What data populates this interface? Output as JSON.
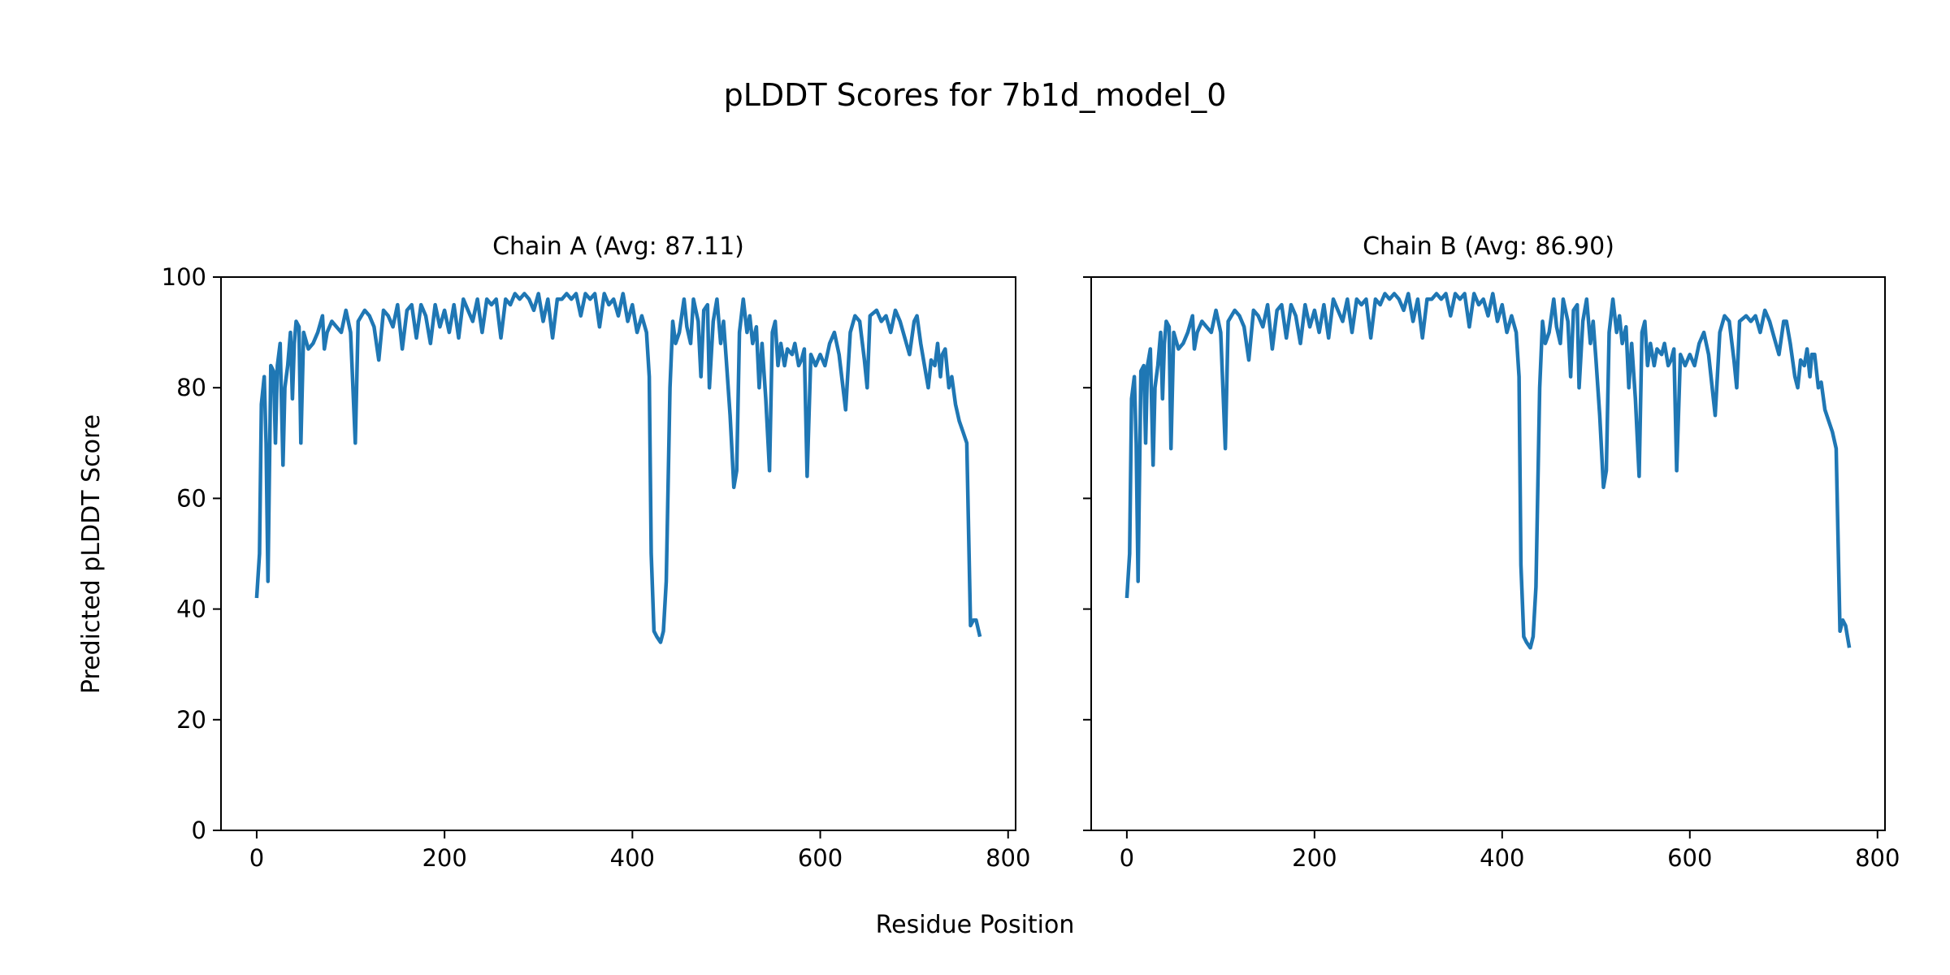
{
  "chart_data": {
    "type": "line",
    "title": "pLDDT Scores for 7b1d_model_0",
    "xlabel": "Residue Position",
    "ylabel": "Predicted pLDDT Score",
    "line_color": "#1f77b4",
    "xlim": [
      -38,
      808
    ],
    "ylim": [
      0,
      100
    ],
    "xticks": [
      "0",
      "200",
      "400",
      "600",
      "800"
    ],
    "yticks": [
      "0",
      "20",
      "40",
      "60",
      "80",
      "100"
    ],
    "grid": false,
    "panels": [
      {
        "title": "Chain A (Avg: 87.11)",
        "x": [
          0,
          3,
          5,
          8,
          10,
          12,
          15,
          18,
          20,
          22,
          25,
          28,
          30,
          33,
          36,
          38,
          40,
          42,
          45,
          47,
          50,
          55,
          60,
          65,
          70,
          72,
          75,
          80,
          85,
          90,
          95,
          100,
          105,
          108,
          115,
          120,
          125,
          130,
          135,
          140,
          145,
          150,
          155,
          160,
          165,
          170,
          175,
          180,
          185,
          190,
          195,
          200,
          205,
          210,
          215,
          220,
          225,
          230,
          235,
          240,
          245,
          250,
          255,
          260,
          265,
          270,
          275,
          280,
          285,
          290,
          295,
          300,
          305,
          310,
          315,
          320,
          325,
          330,
          335,
          340,
          345,
          350,
          355,
          360,
          365,
          370,
          375,
          380,
          385,
          390,
          395,
          400,
          405,
          410,
          415,
          418,
          420,
          423,
          426,
          430,
          433,
          436,
          440,
          443,
          446,
          450,
          455,
          458,
          462,
          465,
          470,
          473,
          476,
          480,
          482,
          486,
          490,
          494,
          497,
          500,
          504,
          508,
          511,
          514,
          518,
          522,
          525,
          528,
          532,
          535,
          538,
          542,
          546,
          549,
          552,
          555,
          558,
          562,
          565,
          570,
          573,
          577,
          580,
          583,
          586,
          590,
          595,
          600,
          605,
          610,
          615,
          620,
          627,
          632,
          637,
          642,
          647,
          650,
          653,
          660,
          665,
          670,
          675,
          680,
          685,
          690,
          695,
          700,
          703,
          707,
          712,
          715,
          718,
          722,
          725,
          728,
          730,
          733,
          737,
          740,
          744,
          748,
          752,
          756,
          760,
          763,
          766,
          770
        ],
        "y": [
          42,
          50,
          77,
          82,
          70,
          45,
          84,
          83,
          70,
          84,
          88,
          66,
          80,
          84,
          90,
          78,
          88,
          92,
          91,
          70,
          90,
          87,
          88,
          90,
          93,
          87,
          90,
          92,
          91,
          90,
          94,
          90,
          70,
          92,
          94,
          93,
          91,
          85,
          94,
          93,
          91,
          95,
          87,
          94,
          95,
          89,
          95,
          93,
          88,
          95,
          91,
          94,
          90,
          95,
          89,
          96,
          94,
          92,
          96,
          90,
          96,
          95,
          96,
          89,
          96,
          95,
          97,
          96,
          97,
          96,
          94,
          97,
          92,
          96,
          89,
          96,
          96,
          97,
          96,
          97,
          93,
          97,
          96,
          97,
          91,
          97,
          95,
          96,
          93,
          97,
          92,
          95,
          90,
          93,
          90,
          82,
          50,
          36,
          35,
          34,
          36,
          45,
          80,
          92,
          88,
          90,
          96,
          91,
          88,
          96,
          92,
          82,
          94,
          95,
          80,
          92,
          96,
          88,
          92,
          85,
          75,
          62,
          65,
          90,
          96,
          90,
          93,
          88,
          91,
          80,
          88,
          78,
          65,
          90,
          92,
          84,
          88,
          84,
          87,
          86,
          88,
          84,
          85,
          87,
          64,
          86,
          84,
          86,
          84,
          88,
          90,
          86,
          76,
          90,
          93,
          92,
          85,
          80,
          93,
          94,
          92,
          93,
          90,
          94,
          92,
          89,
          86,
          92,
          93,
          88,
          83,
          80,
          85,
          84,
          88,
          82,
          86,
          87,
          80,
          82,
          77,
          74,
          72,
          70,
          37,
          38,
          38,
          35
        ]
      },
      {
        "title": "Chain B (Avg: 86.90)",
        "x": [
          0,
          3,
          5,
          8,
          10,
          12,
          15,
          18,
          20,
          22,
          25,
          28,
          30,
          33,
          36,
          38,
          40,
          42,
          45,
          47,
          50,
          55,
          60,
          65,
          70,
          72,
          75,
          80,
          85,
          90,
          95,
          100,
          105,
          108,
          115,
          120,
          125,
          130,
          135,
          140,
          145,
          150,
          155,
          160,
          165,
          170,
          175,
          180,
          185,
          190,
          195,
          200,
          205,
          210,
          215,
          220,
          225,
          230,
          235,
          240,
          245,
          250,
          255,
          260,
          265,
          270,
          275,
          280,
          285,
          290,
          295,
          300,
          305,
          310,
          315,
          320,
          325,
          330,
          335,
          340,
          345,
          350,
          355,
          360,
          365,
          370,
          375,
          380,
          385,
          390,
          395,
          400,
          405,
          410,
          415,
          418,
          420,
          423,
          426,
          430,
          433,
          436,
          440,
          443,
          446,
          450,
          455,
          458,
          462,
          465,
          470,
          473,
          476,
          480,
          482,
          486,
          490,
          494,
          497,
          500,
          504,
          508,
          511,
          514,
          518,
          522,
          525,
          528,
          532,
          535,
          538,
          542,
          546,
          549,
          552,
          555,
          558,
          562,
          565,
          570,
          573,
          577,
          580,
          583,
          586,
          590,
          595,
          600,
          605,
          610,
          615,
          620,
          627,
          632,
          637,
          642,
          647,
          650,
          653,
          660,
          665,
          670,
          675,
          680,
          685,
          690,
          695,
          700,
          703,
          707,
          712,
          715,
          718,
          722,
          725,
          728,
          730,
          733,
          737,
          740,
          744,
          748,
          752,
          756,
          760,
          763,
          766,
          770
        ],
        "y": [
          42,
          50,
          78,
          82,
          70,
          45,
          83,
          84,
          70,
          84,
          87,
          66,
          80,
          84,
          90,
          78,
          88,
          92,
          91,
          69,
          90,
          87,
          88,
          90,
          93,
          87,
          90,
          92,
          91,
          90,
          94,
          90,
          69,
          92,
          94,
          93,
          91,
          85,
          94,
          93,
          91,
          95,
          87,
          94,
          95,
          89,
          95,
          93,
          88,
          95,
          91,
          94,
          90,
          95,
          89,
          96,
          94,
          92,
          96,
          90,
          96,
          95,
          96,
          89,
          96,
          95,
          97,
          96,
          97,
          96,
          94,
          97,
          92,
          96,
          89,
          96,
          96,
          97,
          96,
          97,
          93,
          97,
          96,
          97,
          91,
          97,
          95,
          96,
          93,
          97,
          92,
          95,
          90,
          93,
          90,
          82,
          48,
          35,
          34,
          33,
          35,
          44,
          80,
          92,
          88,
          90,
          96,
          91,
          88,
          96,
          92,
          82,
          94,
          95,
          80,
          92,
          96,
          88,
          92,
          85,
          75,
          62,
          65,
          90,
          96,
          90,
          93,
          88,
          91,
          80,
          88,
          78,
          64,
          90,
          92,
          84,
          88,
          84,
          87,
          86,
          88,
          84,
          85,
          87,
          65,
          86,
          84,
          86,
          84,
          88,
          90,
          86,
          75,
          90,
          93,
          92,
          85,
          80,
          92,
          93,
          92,
          93,
          90,
          94,
          92,
          89,
          86,
          92,
          92,
          88,
          82,
          80,
          85,
          84,
          87,
          82,
          86,
          86,
          80,
          81,
          76,
          74,
          72,
          69,
          36,
          38,
          37,
          33
        ]
      }
    ]
  }
}
